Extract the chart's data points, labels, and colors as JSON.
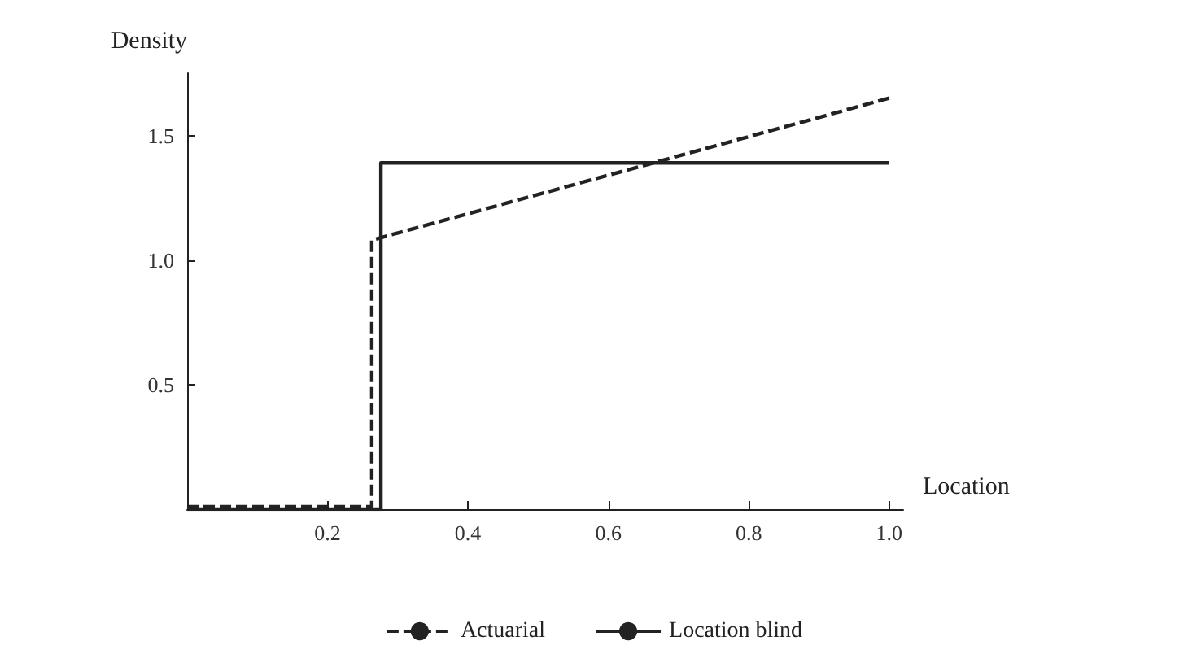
{
  "chart_data": {
    "type": "line",
    "xlabel": "Location",
    "ylabel": "Density",
    "xlim": [
      0,
      1.02
    ],
    "ylim": [
      0,
      1.75
    ],
    "xticks": [
      0.2,
      0.4,
      0.6,
      0.8,
      {
        "value": 1,
        "label": "1.0"
      }
    ],
    "yticks": [
      0.5,
      {
        "value": 1,
        "label": "1.0"
      },
      1.5
    ],
    "grid": false,
    "legend": "bottom",
    "marker": "none",
    "series": [
      {
        "name": "Actuarial",
        "color": "#222222",
        "line_style": "dashed",
        "x": [
          0,
          0.263,
          0.263,
          1.0
        ],
        "values": [
          0.01,
          0.01,
          1.08,
          1.65
        ]
      },
      {
        "name": "Location blind",
        "color": "#222222",
        "line_style": "solid",
        "x": [
          0,
          0.276,
          0.276,
          1.0
        ],
        "values": [
          0.0,
          0.0,
          1.39,
          1.39
        ]
      }
    ]
  }
}
